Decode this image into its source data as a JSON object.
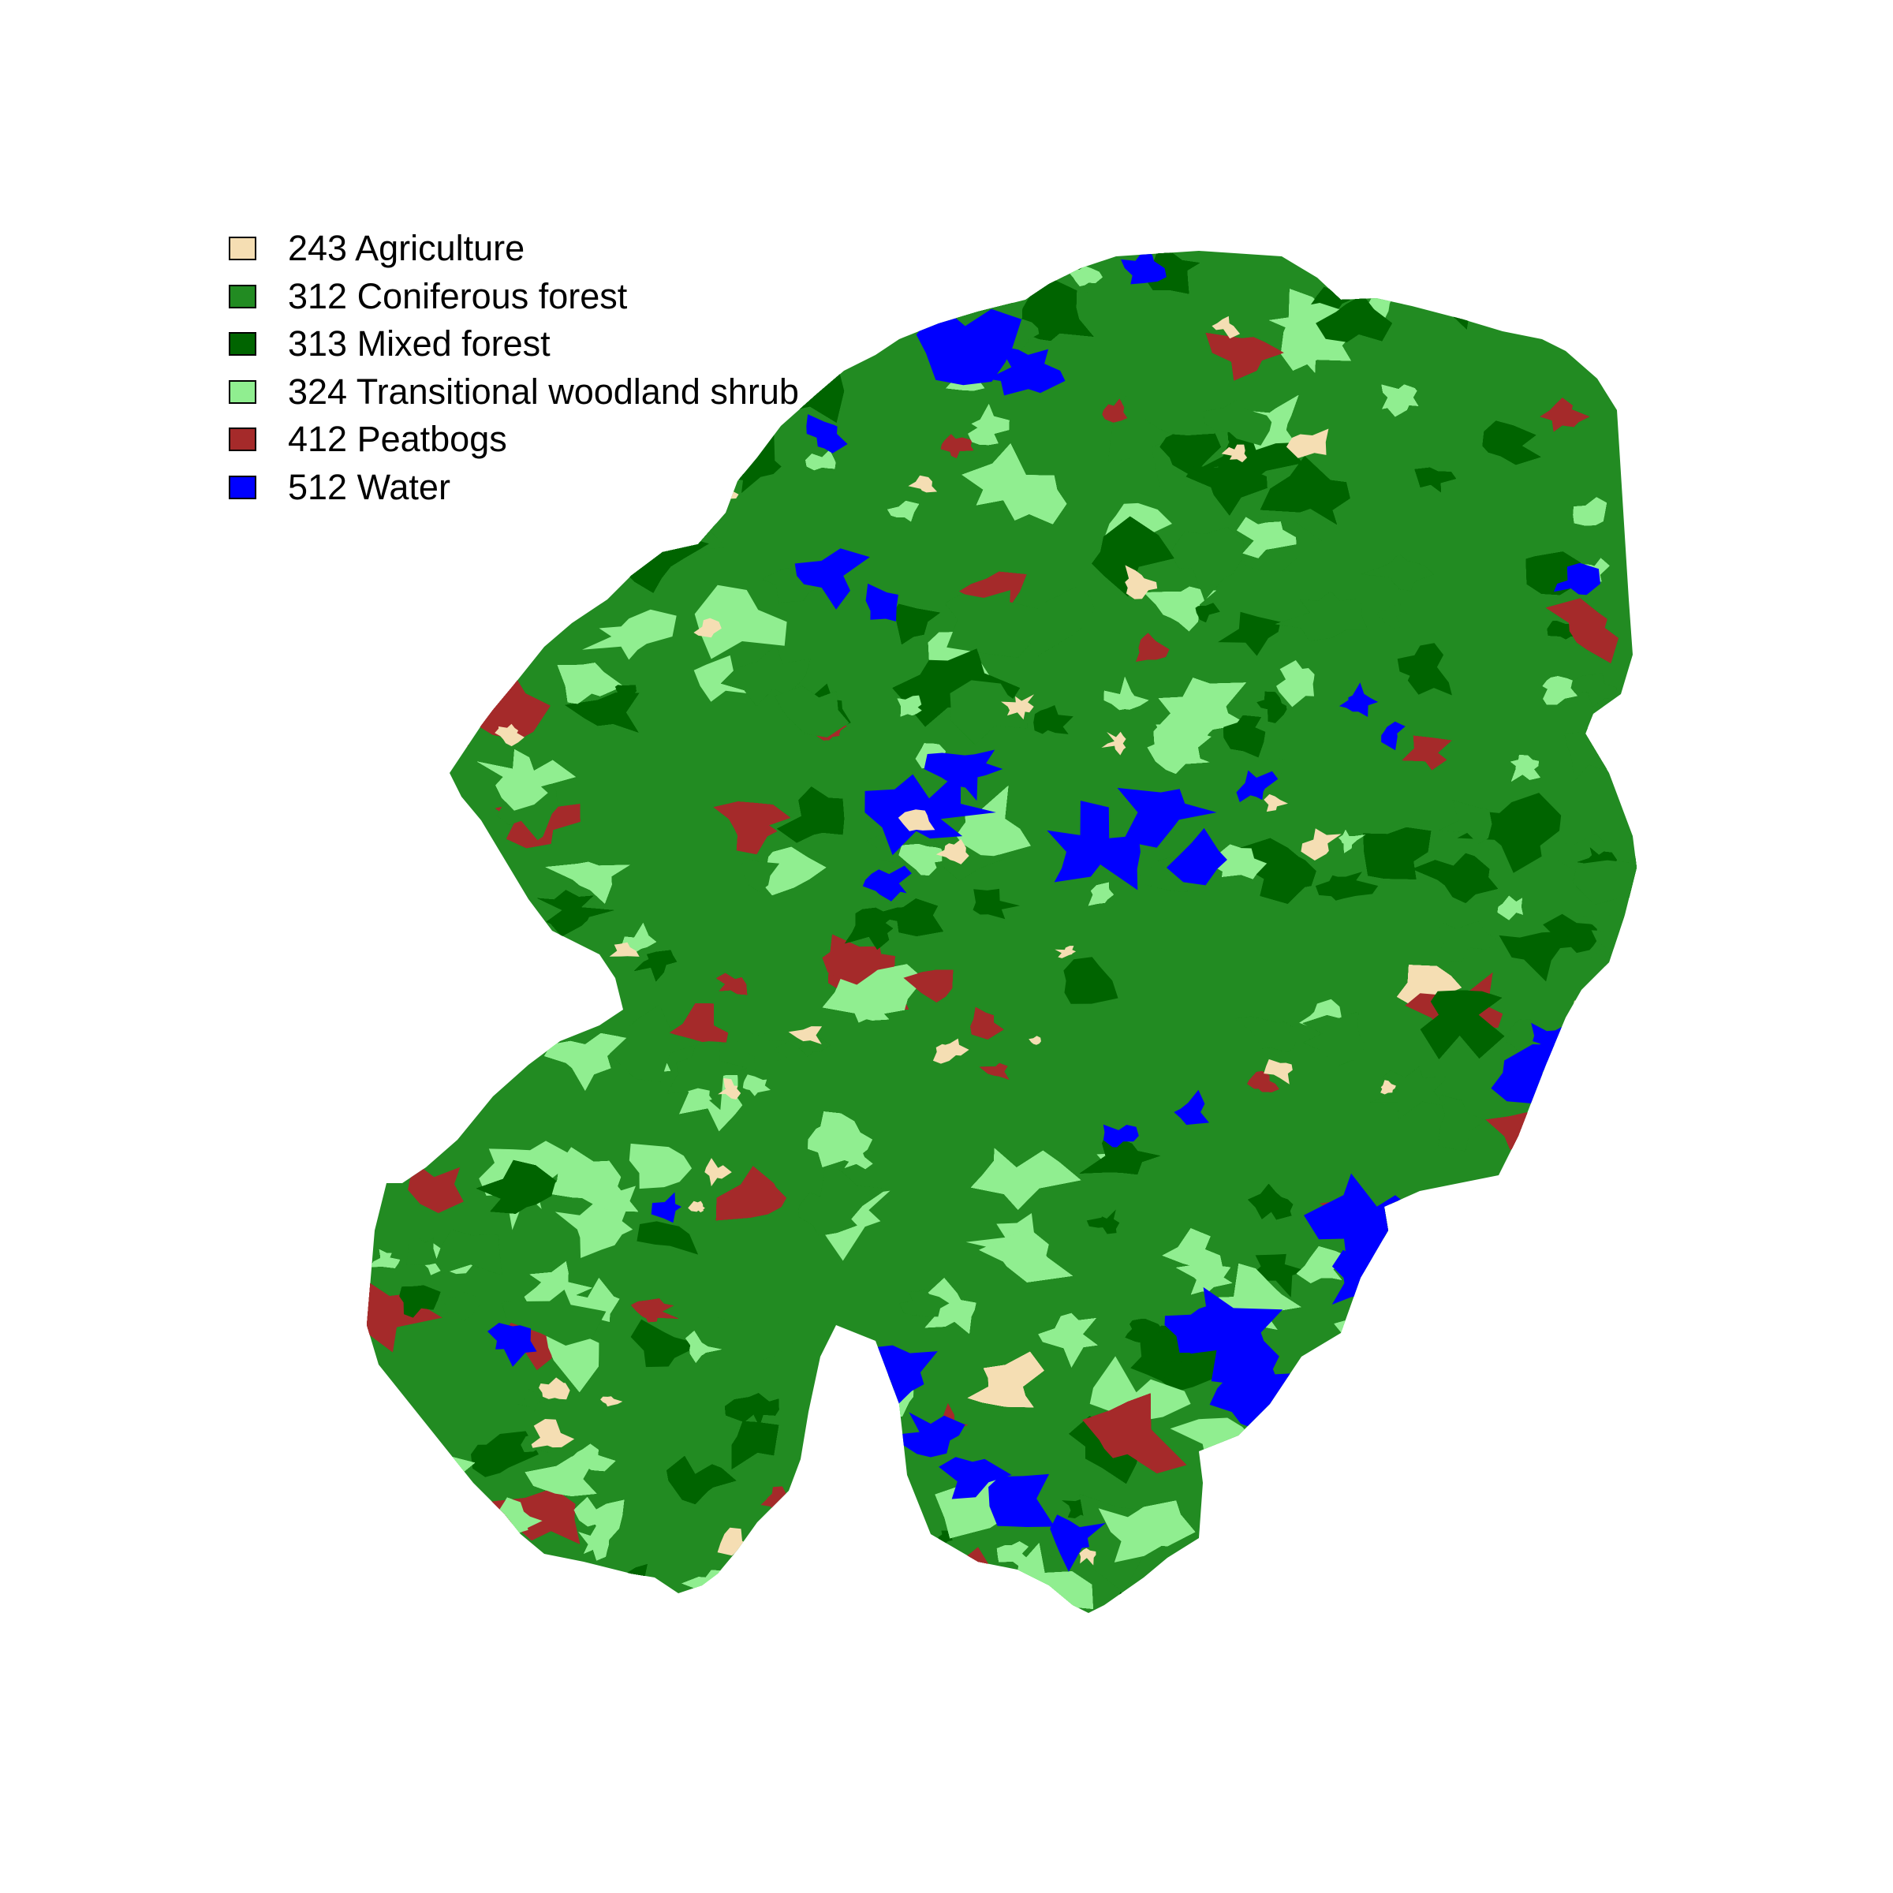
{
  "legend": {
    "items": [
      {
        "label": "243 Agriculture",
        "color": "#F5DEB3"
      },
      {
        "label": "312 Coniferous forest",
        "color": "#228B22"
      },
      {
        "label": "313 Mixed forest",
        "color": "#006400"
      },
      {
        "label": "324 Transitional woodland shrub",
        "color": "#90EE90"
      },
      {
        "label": "412 Peatbogs",
        "color": "#A52A2A"
      },
      {
        "label": "512 Water",
        "color": "#0000FF"
      }
    ]
  },
  "map": {
    "type": "land-cover raster",
    "classes": [
      "243",
      "312",
      "313",
      "324",
      "412",
      "512"
    ]
  }
}
